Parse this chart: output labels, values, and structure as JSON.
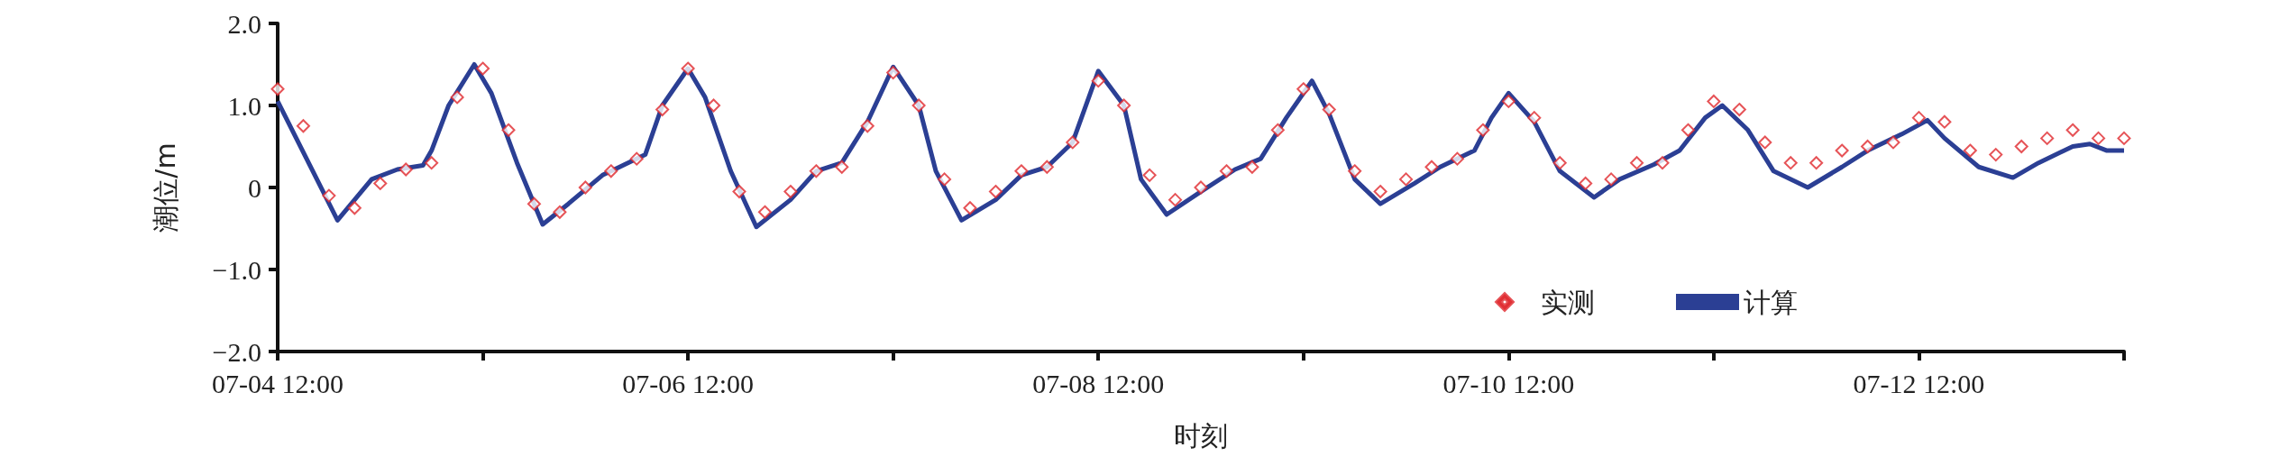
{
  "chart_data": {
    "type": "line",
    "xlabel": "时刻",
    "ylabel": "潮位/m",
    "xlim": [
      "--07-04T12:00",
      "--07-13T12:00"
    ],
    "xticks": [
      {
        "value": "--07-04T12:00",
        "label": "07-04 12:00"
      },
      {
        "value": "--07-05T12:00",
        "label": null
      },
      {
        "value": "--07-06T12:00",
        "label": "07-06 12:00"
      },
      {
        "value": "--07-07T12:00",
        "label": null
      },
      {
        "value": "--07-08T12:00",
        "label": "07-08 12:00"
      },
      {
        "value": "--07-09T12:00",
        "label": null
      },
      {
        "value": "--07-10T12:00",
        "label": "07-10 12:00"
      },
      {
        "value": "--07-11T12:00",
        "label": null
      },
      {
        "value": "--07-12T12:00",
        "label": "07-12 12:00"
      },
      {
        "value": "--07-13T12:00",
        "label": null
      }
    ],
    "ylim": [
      -2,
      2
    ],
    "yticks": [
      {
        "value": -2,
        "label": "−2.0"
      },
      {
        "value": -1,
        "label": "−1.0"
      },
      0,
      {
        "value": 1,
        "label": "1.0"
      },
      {
        "value": 2,
        "label": "2.0"
      }
    ],
    "grid": false,
    "legend": "bottom right",
    "series": [
      {
        "name": "实测",
        "type": "scatter",
        "marker": "diamond",
        "color": "#e0282d",
        "x": [
          "--07-04T12:00",
          "--07-04T15:00",
          "--07-04T18:00",
          "--07-04T21:00",
          "--07-05T00:00",
          "--07-05T03:00",
          "--07-05T06:00",
          "--07-05T09:00",
          "--07-05T12:00",
          "--07-05T15:00",
          "--07-05T18:00",
          "--07-05T21:00",
          "--07-06T00:00",
          "--07-06T03:00",
          "--07-06T06:00",
          "--07-06T09:00",
          "--07-06T12:00",
          "--07-06T15:00",
          "--07-06T18:00",
          "--07-06T21:00",
          "--07-07T00:00",
          "--07-07T03:00",
          "--07-07T06:00",
          "--07-07T09:00",
          "--07-07T12:00",
          "--07-07T15:00",
          "--07-07T18:00",
          "--07-07T21:00",
          "--07-08T00:00",
          "--07-08T03:00",
          "--07-08T06:00",
          "--07-08T09:00",
          "--07-08T12:00",
          "--07-08T15:00",
          "--07-08T18:00",
          "--07-08T21:00",
          "--07-09T00:00",
          "--07-09T03:00",
          "--07-09T06:00",
          "--07-09T09:00",
          "--07-09T12:00",
          "--07-09T15:00",
          "--07-09T18:00",
          "--07-09T21:00",
          "--07-10T00:00",
          "--07-10T03:00",
          "--07-10T06:00",
          "--07-10T09:00",
          "--07-10T12:00",
          "--07-10T15:00",
          "--07-10T18:00",
          "--07-10T21:00",
          "--07-11T00:00",
          "--07-11T03:00",
          "--07-11T06:00",
          "--07-11T09:00",
          "--07-11T12:00",
          "--07-11T15:00",
          "--07-11T18:00",
          "--07-11T21:00",
          "--07-12T00:00",
          "--07-12T03:00",
          "--07-12T06:00",
          "--07-12T09:00",
          "--07-12T12:00",
          "--07-12T15:00",
          "--07-12T18:00",
          "--07-12T21:00",
          "--07-13T00:00",
          "--07-13T03:00",
          "--07-13T06:00",
          "--07-13T09:00",
          "--07-13T12:00"
        ],
        "values": [
          1.2,
          0.75,
          -0.1,
          -0.25,
          0.05,
          0.22,
          0.3,
          1.1,
          1.45,
          0.7,
          -0.2,
          -0.3,
          0.0,
          0.2,
          0.35,
          0.95,
          1.45,
          1.0,
          -0.05,
          -0.3,
          -0.05,
          0.2,
          0.25,
          0.75,
          1.4,
          1.0,
          0.1,
          -0.25,
          -0.05,
          0.2,
          0.25,
          0.55,
          1.3,
          1.0,
          0.15,
          -0.15,
          0.0,
          0.2,
          0.25,
          0.7,
          1.2,
          0.95,
          0.2,
          -0.05,
          0.1,
          0.25,
          0.35,
          0.7,
          1.05,
          0.85,
          0.3,
          0.05,
          0.1,
          0.3,
          0.3,
          0.7,
          1.05,
          0.95,
          0.55,
          0.3,
          0.3,
          0.45,
          0.5,
          0.55,
          0.85,
          0.8,
          0.45,
          0.4,
          0.5,
          0.6,
          0.7,
          0.6,
          0.6
        ]
      },
      {
        "name": "计算",
        "marker": "none",
        "color": "#2b3f94",
        "x": [
          "--07-04T12:00",
          "--07-04T19:00",
          "--07-04T23:00",
          "--07-05T02:00",
          "--07-05T05:00",
          "--07-05T06:00",
          "--07-05T08:00",
          "--07-05T11:00",
          "--07-05T13:00",
          "--07-05T16:00",
          "--07-05T19:00",
          "--07-05T22:00",
          "--07-06T02:00",
          "--07-06T04:00",
          "--07-06T07:00",
          "--07-06T09:00",
          "--07-06T12:00",
          "--07-06T14:00",
          "--07-06T17:00",
          "--07-06T20:00",
          "--07-07T00:00",
          "--07-07T03:00",
          "--07-07T06:00",
          "--07-07T09:00",
          "--07-07T12:00",
          "--07-07T15:00",
          "--07-07T17:00",
          "--07-07T20:00",
          "--07-08T00:00",
          "--07-08T03:00",
          "--07-08T06:00",
          "--07-08T09:00",
          "--07-08T12:00",
          "--07-08T15:00",
          "--07-08T17:00",
          "--07-08T20:00",
          "--07-09T00:00",
          "--07-09T04:00",
          "--07-09T07:00",
          "--07-09T10:00",
          "--07-09T13:00",
          "--07-09T15:00",
          "--07-09T18:00",
          "--07-09T21:00",
          "--07-10T01:00",
          "--07-10T04:00",
          "--07-10T08:00",
          "--07-10T10:00",
          "--07-10T12:00",
          "--07-10T15:00",
          "--07-10T18:00",
          "--07-10T22:00",
          "--07-11T01:00",
          "--07-11T05:00",
          "--07-11T08:00",
          "--07-11T11:00",
          "--07-11T13:00",
          "--07-11T16:00",
          "--07-11T19:00",
          "--07-11T23:00",
          "--07-12T03:00",
          "--07-12T06:00",
          "--07-12T10:00",
          "--07-12T13:00",
          "--07-12T15:00",
          "--07-12T19:00",
          "--07-12T23:00",
          "--07-13T02:00",
          "--07-13T06:00",
          "--07-13T08:00",
          "--07-13T10:00",
          "--07-13T12:00"
        ],
        "values": [
          1.05,
          -0.4,
          0.1,
          0.22,
          0.27,
          0.45,
          1.0,
          1.5,
          1.15,
          0.3,
          -0.45,
          -0.2,
          0.15,
          0.25,
          0.4,
          1.0,
          1.45,
          1.1,
          0.2,
          -0.48,
          -0.15,
          0.2,
          0.3,
          0.8,
          1.47,
          1.0,
          0.2,
          -0.4,
          -0.15,
          0.15,
          0.25,
          0.55,
          1.42,
          1.0,
          0.1,
          -0.33,
          -0.05,
          0.22,
          0.35,
          0.85,
          1.3,
          0.9,
          0.1,
          -0.2,
          0.05,
          0.25,
          0.45,
          0.85,
          1.15,
          0.8,
          0.2,
          -0.12,
          0.1,
          0.28,
          0.45,
          0.85,
          1.0,
          0.7,
          0.2,
          0.0,
          0.25,
          0.45,
          0.65,
          0.82,
          0.6,
          0.25,
          0.12,
          0.3,
          0.5,
          0.53,
          0.45,
          0.45
        ]
      }
    ]
  }
}
